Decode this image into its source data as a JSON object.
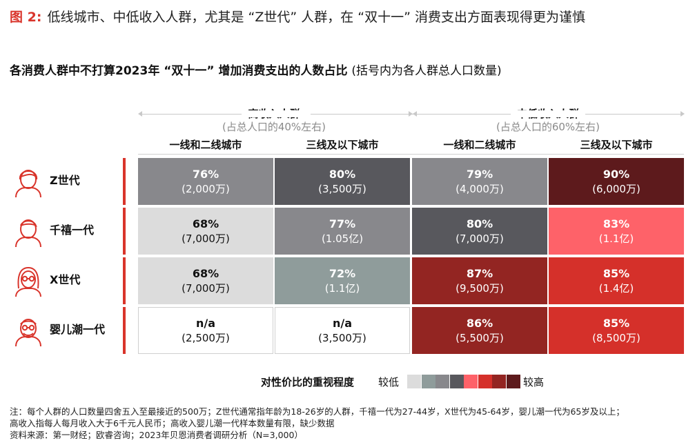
{
  "figure": {
    "number": "图 2:",
    "caption": "低线城市、中低收入人群，尤其是 “Z世代” 人群，在 “双十一” 消费支出方面表现得更为谨慎"
  },
  "chart_data": {
    "type": "table",
    "title": "各消费人群中不打算2023年 “双十一” 增加消费支出的人数占比",
    "subtitle": "(括号内为各人群总人口数量)",
    "income_groups": [
      {
        "name": "高收入人群",
        "share": "(占总人口的40%左右)"
      },
      {
        "name": "中低收入人群",
        "share": "(占总人口的60%左右)"
      }
    ],
    "columns": [
      "一线和二线城市",
      "三线及以下城市",
      "一线和二线城市",
      "三线及以下城市"
    ],
    "rows": [
      {
        "label": "Z世代",
        "icon": "young-person-icon",
        "cells": [
          {
            "pct": "76%",
            "pop": "(2,000万)",
            "level": 3
          },
          {
            "pct": "80%",
            "pop": "(3,500万)",
            "level": 4
          },
          {
            "pct": "79%",
            "pop": "(4,000万)",
            "level": 3
          },
          {
            "pct": "90%",
            "pop": "(6,000万)",
            "level": 8
          }
        ]
      },
      {
        "label": "千禧一代",
        "icon": "millennial-person-icon",
        "cells": [
          {
            "pct": "68%",
            "pop": "(7,000万)",
            "level": 1
          },
          {
            "pct": "77%",
            "pop": "(1.05亿)",
            "level": 3
          },
          {
            "pct": "80%",
            "pop": "(7,000万)",
            "level": 4
          },
          {
            "pct": "83%",
            "pop": "(1.1亿)",
            "level": 5
          }
        ]
      },
      {
        "label": "X世代",
        "icon": "woman-glasses-icon",
        "cells": [
          {
            "pct": "68%",
            "pop": "(7,000万)",
            "level": 1
          },
          {
            "pct": "72%",
            "pop": "(1.1亿)",
            "level": 2
          },
          {
            "pct": "87%",
            "pop": "(9,500万)",
            "level": 7
          },
          {
            "pct": "85%",
            "pop": "(1.4亿)",
            "level": 6
          }
        ]
      },
      {
        "label": "婴儿潮一代",
        "icon": "elder-person-glasses-icon",
        "cells": [
          {
            "pct": "n/a",
            "pop": "(2,500万)",
            "level": 0
          },
          {
            "pct": "n/a",
            "pop": "(3,500万)",
            "level": 0
          },
          {
            "pct": "86%",
            "pop": "(5,500万)",
            "level": 7
          },
          {
            "pct": "85%",
            "pop": "(8,500万)",
            "level": 6
          }
        ]
      }
    ],
    "legend": {
      "title": "对性价比的重视程度",
      "low_label": "较低",
      "high_label": "较高",
      "colors": [
        "#dcdcdc",
        "#8f9c9b",
        "#88888c",
        "#58585d",
        "#fe6269",
        "#d5302a",
        "#932522",
        "#5d1a1c"
      ]
    },
    "empty_color": "#ffffff"
  },
  "notes": [
    "注：每个人群的人口数量四舍五入至最接近的500万；Z世代通常指年龄为18-26岁的人群，千禧一代为27-44岁，X世代为45-64岁，婴儿潮一代为65岁及以上；",
    "高收入指每人每月收入大于6千元人民币；高收入婴儿潮一代样本数量有限，缺少数据",
    "资料来源：第一财经；欧睿咨询；2023年贝恩消费者调研分析（N=3,000）"
  ]
}
